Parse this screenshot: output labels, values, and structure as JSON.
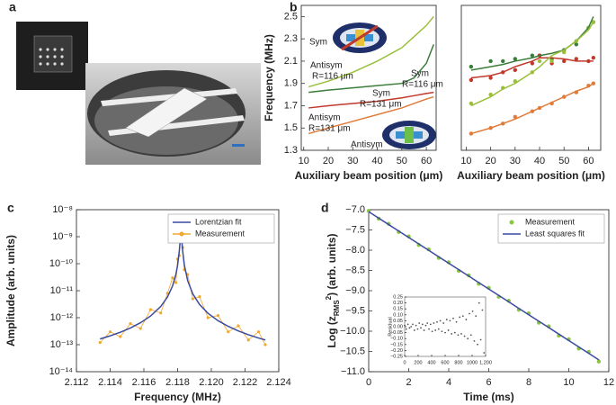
{
  "panel_labels": [
    "a",
    "b",
    "c",
    "d"
  ],
  "chart_data": [
    {
      "type": "line",
      "xlabel": "Auxiliary beam position (μm)",
      "ylabel": "Frequency (MHz)",
      "x": [
        12,
        20,
        30,
        40,
        50,
        55,
        60,
        63
      ],
      "xlim": [
        9,
        64
      ],
      "xticks": [
        10,
        20,
        30,
        40,
        50,
        60
      ],
      "ylim": [
        1.3,
        2.6
      ],
      "yticks": [
        1.3,
        1.5,
        1.7,
        1.9,
        2.1,
        2.3,
        2.5
      ],
      "annotations": [
        "Antisym",
        "R=116 μm",
        "Sym",
        "R=116 μm",
        "Sym",
        "R=131 μm",
        "Antisym",
        "R=131 μm",
        "Sym",
        "Antisym"
      ],
      "series": [
        {
          "color": "#9cbf3b",
          "mode": "line",
          "values": [
            1.87,
            1.92,
            2.0,
            2.1,
            2.22,
            2.32,
            2.42,
            2.5
          ]
        },
        {
          "color": "#3a7d3a",
          "mode": "line",
          "values": [
            1.82,
            1.84,
            1.86,
            1.88,
            1.9,
            1.95,
            2.08,
            2.25
          ]
        },
        {
          "color": "#c0392b",
          "mode": "line",
          "values": [
            1.68,
            1.7,
            1.72,
            1.74,
            1.77,
            1.79,
            1.81,
            1.82
          ]
        },
        {
          "color": "#e07b39",
          "mode": "line",
          "values": [
            1.45,
            1.5,
            1.56,
            1.62,
            1.68,
            1.72,
            1.76,
            1.78
          ]
        }
      ]
    },
    {
      "type": "line",
      "xlabel": "Auxiliary beam position (μm)",
      "x": [
        12,
        20,
        25,
        30,
        37,
        40,
        45,
        50,
        55,
        60,
        62
      ],
      "xlim": [
        8,
        65
      ],
      "xticks": [
        10,
        20,
        30,
        40,
        50,
        60
      ],
      "ylim": [
        1.3,
        2.6
      ],
      "series": [
        {
          "color": "#3a7d3a",
          "mode": "line",
          "values": [
            2.02,
            2.05,
            2.07,
            2.1,
            2.13,
            2.15,
            2.17,
            2.2,
            2.28,
            2.4,
            2.5
          ]
        },
        {
          "color": "#3a7d3a",
          "mode": "points",
          "values": [
            2.05,
            2.1,
            2.1,
            2.12,
            2.15,
            2.15,
            2.12,
            2.2,
            2.25,
            2.4,
            2.45
          ]
        },
        {
          "color": "#c0392b",
          "mode": "line",
          "values": [
            1.95,
            1.97,
            2.0,
            2.05,
            2.1,
            2.13,
            2.13,
            2.12,
            2.1,
            2.1,
            2.1
          ]
        },
        {
          "color": "#c0392b",
          "mode": "points",
          "values": [
            1.93,
            1.95,
            2.0,
            2.02,
            2.08,
            2.15,
            2.08,
            2.1,
            2.12,
            2.1,
            2.13
          ]
        },
        {
          "color": "#9cbf3b",
          "mode": "line",
          "values": [
            1.7,
            1.78,
            1.85,
            1.9,
            2.0,
            2.05,
            2.15,
            2.2,
            2.28,
            2.38,
            2.45
          ]
        },
        {
          "color": "#9cbf3b",
          "mode": "points",
          "values": [
            1.72,
            1.8,
            1.86,
            1.92,
            2.0,
            2.1,
            2.1,
            2.18,
            2.28,
            2.4,
            2.45
          ]
        },
        {
          "color": "#e07b39",
          "mode": "line",
          "values": [
            1.45,
            1.5,
            1.54,
            1.58,
            1.65,
            1.68,
            1.73,
            1.78,
            1.83,
            1.87,
            1.9
          ]
        },
        {
          "color": "#e07b39",
          "mode": "points",
          "values": [
            1.45,
            1.5,
            1.54,
            1.6,
            1.65,
            1.68,
            1.72,
            1.78,
            1.82,
            1.88,
            1.9
          ]
        }
      ]
    },
    {
      "type": "line",
      "log_y": true,
      "xlabel": "Frequency (MHz)",
      "ylabel": "Amplitude (arb. units)",
      "legend": "upper right",
      "x": [
        2.1134,
        2.114,
        2.1146,
        2.1152,
        2.1158,
        2.1164,
        2.117,
        2.1174,
        2.1177,
        2.1179,
        2.118,
        2.1181,
        2.1182,
        2.1183,
        2.1184,
        2.1186,
        2.1189,
        2.1193,
        2.1198,
        2.1204,
        2.121,
        2.1216,
        2.1222,
        2.1228,
        2.1232
      ],
      "xlim": [
        2.112,
        2.124
      ],
      "xticks": [
        2.112,
        2.114,
        2.116,
        2.118,
        {
          "value": 2.12,
          "label": "2.120"
        },
        2.122,
        2.124
      ],
      "ylim": [
        1e-14,
        1e-08
      ],
      "yticks": [
        {
          "value": 1e-14,
          "label": "10⁻¹⁴"
        },
        {
          "value": 1e-13,
          "label": "10⁻¹³"
        },
        {
          "value": 1e-12,
          "label": "10⁻¹²"
        },
        {
          "value": 1e-11,
          "label": "10⁻¹¹"
        },
        {
          "value": 1e-10,
          "label": "10⁻¹⁰"
        },
        {
          "value": 1e-09,
          "label": "10⁻⁹"
        },
        {
          "value": 1e-08,
          "label": "10⁻⁸"
        }
      ],
      "series": [
        {
          "name": "Lorentzian fit",
          "color": "#3a4aa0",
          "mode": "line",
          "values": [
            1.63e-13,
            2.13e-13,
            2.89e-13,
            4.17e-13,
            6.51e-13,
            1.16e-12,
            2.6e-12,
            5.84e-12,
            1.49e-11,
            4.05e-11,
            8.82e-11,
            3e-10,
            1.5e-09,
            3e-10,
            8.82e-11,
            2.31e-11,
            7.61e-12,
            3.09e-12,
            1.46e-12,
            7.74e-13,
            4.78e-13,
            3.24e-13,
            2.34e-13,
            1.77e-13,
            1.5e-13
          ]
        },
        {
          "name": "Measurement",
          "color": "#f0a830",
          "mode": "line+points",
          "values": [
            1.2e-13,
            3e-13,
            2e-13,
            6e-13,
            4e-13,
            2e-12,
            1.5e-12,
            8e-12,
            3e-11,
            2e-11,
            1.5e-10,
            2e-10,
            1.6e-09,
            4e-10,
            6e-11,
            4e-11,
            5e-12,
            6e-12,
            1e-12,
            1.2e-12,
            3e-13,
            5e-13,
            1.5e-13,
            3e-13,
            1e-13
          ]
        }
      ]
    },
    {
      "type": "line",
      "xlabel": "Time (ms)",
      "ylabel": [
        "Log (z",
        "RMS",
        "2",
        ") (arb. units)"
      ],
      "legend": "upper right",
      "x": [
        0,
        0.5,
        1,
        1.5,
        2,
        2.5,
        3,
        3.5,
        4,
        4.5,
        5,
        5.5,
        6,
        6.5,
        7,
        7.5,
        8,
        8.5,
        9,
        9.5,
        10,
        10.5,
        11,
        11.5
      ],
      "xlim": [
        0,
        12
      ],
      "xticks": [
        0,
        2,
        4,
        6,
        8,
        10,
        12
      ],
      "ylim": [
        -11,
        -7
      ],
      "yticks": [
        {
          "value": -7,
          "label": "−7.0"
        },
        {
          "value": -7.5,
          "label": "−7.5"
        },
        {
          "value": -8,
          "label": "−8.0"
        },
        {
          "value": -8.5,
          "label": "−8.5"
        },
        {
          "value": -9,
          "label": "−9.0"
        },
        {
          "value": -9.5,
          "label": "−9.5"
        },
        {
          "value": -10,
          "label": "−10.0"
        },
        {
          "value": -10.5,
          "label": "−10.5"
        },
        {
          "value": -11,
          "label": "−11.0"
        }
      ],
      "series": [
        {
          "name": "Measurement",
          "color": "#8cc63f",
          "mode": "points",
          "values": [
            -7.03,
            -7.22,
            -7.35,
            -7.55,
            -7.66,
            -7.87,
            -7.98,
            -8.19,
            -8.3,
            -8.51,
            -8.62,
            -8.83,
            -8.93,
            -9.15,
            -9.25,
            -9.47,
            -9.56,
            -9.79,
            -9.88,
            -10.11,
            -10.2,
            -10.43,
            -10.51,
            -10.75
          ]
        },
        {
          "name": "Least squares fit",
          "color": "#3a4aa0",
          "mode": "line",
          "values": [
            -7.05,
            -7.209,
            -7.368,
            -7.527,
            -7.686,
            -7.845,
            -8.004,
            -8.163,
            -8.322,
            -8.481,
            -8.64,
            -8.799,
            -8.958,
            -9.117,
            -9.276,
            -9.435,
            -9.594,
            -9.753,
            -9.912,
            -10.071,
            -10.23,
            -10.389,
            -10.548,
            -10.707
          ]
        }
      ]
    },
    {
      "type": "scatter",
      "ylabel": "Residual",
      "x": [
        0,
        24,
        48,
        72,
        96,
        120,
        144,
        168,
        192,
        216,
        240,
        264,
        288,
        312,
        336,
        360,
        384,
        408,
        432,
        456,
        480,
        504,
        528,
        552,
        576,
        600,
        624,
        648,
        672,
        696,
        720,
        744,
        768,
        792,
        816,
        840,
        864,
        888,
        912,
        936,
        960,
        984,
        1008,
        1032,
        1056,
        1080,
        1104,
        1128,
        1152,
        1176
      ],
      "xlim": [
        0,
        1200
      ],
      "xticks": [
        0,
        200,
        400,
        600,
        800,
        1000,
        {
          "value": 1200,
          "label": "1,200"
        }
      ],
      "ylim": [
        -0.25,
        0.25
      ],
      "yticks": [
        0.25,
        {
          "value": 0.2,
          "label": "0.20"
        },
        0.15,
        {
          "value": 0.1,
          "label": "0.10"
        },
        0.05,
        {
          "value": 0,
          "label": "0.00"
        },
        {
          "value": -0.05,
          "label": "−0.05"
        },
        {
          "value": -0.1,
          "label": "−0.10"
        },
        {
          "value": -0.15,
          "label": "−0.15"
        },
        {
          "value": -0.2,
          "label": "−0.20"
        },
        {
          "value": -0.25,
          "label": "−0.25"
        }
      ],
      "series": [
        {
          "color": "#555555",
          "mode": "points",
          "values": [
            0.01,
            -0.02,
            0.02,
            -0.01,
            0.0,
            0.02,
            -0.03,
            0.01,
            -0.02,
            0.03,
            -0.01,
            0.02,
            -0.03,
            0.01,
            0.03,
            -0.02,
            0.02,
            -0.04,
            0.03,
            -0.03,
            0.04,
            -0.02,
            0.05,
            -0.04,
            0.03,
            -0.05,
            0.06,
            -0.03,
            0.05,
            -0.06,
            0.07,
            -0.05,
            0.04,
            -0.07,
            0.08,
            -0.06,
            0.09,
            -0.08,
            0.06,
            -0.1,
            0.11,
            -0.07,
            0.13,
            -0.12,
            0.09,
            -0.15,
            0.2,
            -0.11,
            0.14,
            -0.22
          ]
        }
      ]
    }
  ]
}
